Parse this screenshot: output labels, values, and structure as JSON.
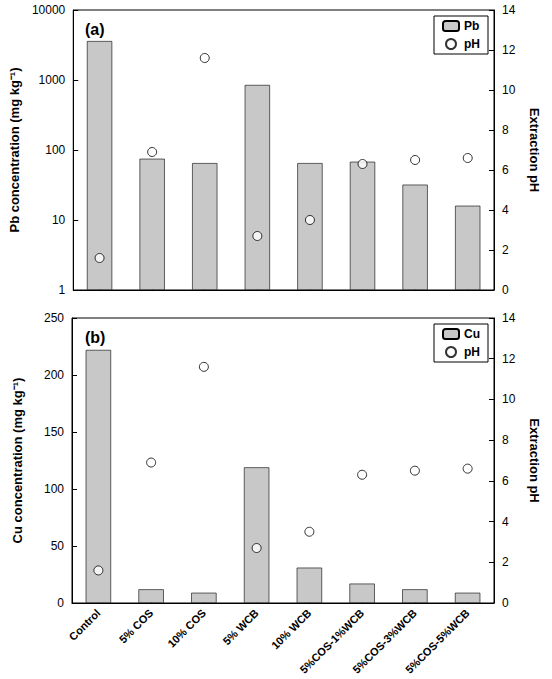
{
  "chart_data": [
    {
      "type": "bar",
      "title": "(a)",
      "categories": [
        "Control",
        "5% COS",
        "10% COS",
        "5% WCB",
        "10% WCB",
        "5%COS-1%WCB",
        "5%COS-3%WCB",
        "5%COS-5%WCB"
      ],
      "series": [
        {
          "name": "Pb",
          "type": "bar",
          "color": "#c8c8c8",
          "values": [
            3600,
            75,
            65,
            850,
            65,
            68,
            32,
            16
          ]
        },
        {
          "name": "pH",
          "type": "scatter",
          "axis": "y2",
          "marker": "circle",
          "color": "#ffffff",
          "values": [
            1.6,
            6.9,
            11.6,
            2.7,
            3.5,
            6.3,
            6.5,
            6.6
          ]
        }
      ],
      "ylabel": "Pb concentration (mg kg⁻¹)",
      "y2label": "Extraction pH",
      "log": "y",
      "ylim": [
        1,
        10000
      ],
      "yticks": [
        1,
        10,
        100,
        1000,
        10000
      ],
      "y2lim": [
        0,
        14
      ],
      "y2ticks": [
        0,
        2,
        4,
        6,
        8,
        10,
        12,
        14
      ],
      "grid": false,
      "legend": "upper right",
      "tick_labels": "y"
    },
    {
      "type": "bar",
      "title": "(b)",
      "categories": [
        "Control",
        "5% COS",
        "10% COS",
        "5% WCB",
        "10% WCB",
        "5%COS-1%WCB",
        "5%COS-3%WCB",
        "5%COS-5%WCB"
      ],
      "series": [
        {
          "name": "Cu",
          "type": "bar",
          "color": "#c8c8c8",
          "values": [
            222,
            12,
            9,
            119,
            31,
            17,
            12,
            9
          ]
        },
        {
          "name": "pH",
          "type": "scatter",
          "axis": "y2",
          "marker": "circle",
          "color": "#ffffff",
          "values": [
            1.6,
            6.9,
            11.6,
            2.7,
            3.5,
            6.3,
            6.5,
            6.6
          ]
        }
      ],
      "ylabel": "Cu concentration (mg kg⁻¹)",
      "y2label": "Extraction pH",
      "ylim": [
        0,
        250
      ],
      "yticks": [
        0,
        50,
        100,
        150,
        200,
        250
      ],
      "y2lim": [
        0,
        14
      ],
      "y2ticks": [
        0,
        2,
        4,
        6,
        8,
        10,
        12,
        14
      ],
      "grid": false,
      "legend": "upper right"
    }
  ]
}
